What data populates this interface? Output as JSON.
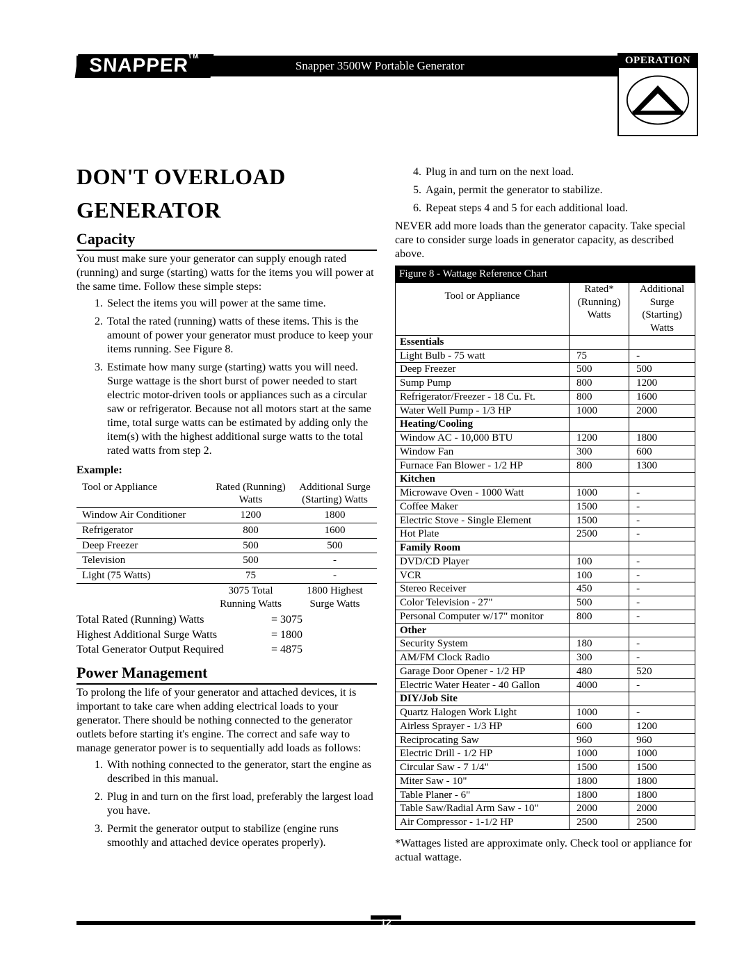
{
  "header": {
    "brand": "SNAPPER",
    "tm": "TM",
    "doc_title": "Snapper 3500W Portable Generator",
    "badge_label": "OPERATION"
  },
  "left": {
    "title_l1": "DON'T OVERLOAD",
    "title_l2": "GENERATOR",
    "capacity_h": "Capacity",
    "capacity_p": "You must make sure your generator can supply enough rated (running) and surge (starting) watts for the items you will power at the same time. Follow these simple steps:",
    "cap_steps": [
      "Select the items you will power at the same time.",
      "Total the rated (running) watts of these items. This is the amount of power your generator must produce to keep your items running. See Figure 8.",
      "Estimate how many surge (starting) watts you will need. Surge wattage is the short burst of power needed to start electric motor-driven tools or appliances such as a circular saw or refrigerator. Because not all motors start at the same time, total surge watts can be estimated by adding only the item(s) with the highest additional surge watts to the total rated watts from step 2."
    ],
    "example_label": "Example:",
    "ex_head": [
      "Tool or Appliance",
      "Rated (Running) Watts",
      "Additional Surge (Starting) Watts"
    ],
    "ex_rows": [
      [
        "Window Air Conditioner",
        "1200",
        "1800"
      ],
      [
        "Refrigerator",
        "800",
        "1600"
      ],
      [
        "Deep Freezer",
        "500",
        "500"
      ],
      [
        "Television",
        "500",
        "-"
      ],
      [
        "Light (75 Watts)",
        "75",
        "-"
      ]
    ],
    "ex_foot": [
      "",
      "3075 Total Running Watts",
      "1800 Highest Surge Watts"
    ],
    "totals": [
      [
        "Total Rated (Running) Watts",
        "= 3075"
      ],
      [
        "Highest Additional Surge Watts",
        "= 1800"
      ],
      [
        "Total Generator Output Required",
        "= 4875"
      ]
    ],
    "pm_h": "Power Management",
    "pm_p": "To prolong the life of your generator and attached devices, it is important to take care when adding electrical loads to your generator. There should be nothing connected to the generator outlets before starting it's engine. The correct and safe way to manage generator power is to sequentially add loads as follows:",
    "pm_steps": [
      "With nothing connected to the generator, start the engine as described in this manual.",
      "Plug in and turn on the first load, preferably the largest load you have.",
      "Permit the generator output to stabilize (engine runs smoothly and attached device operates properly)."
    ]
  },
  "right": {
    "steps_cont": [
      "Plug in and turn on the next load.",
      "Again, permit the generator to stabilize.",
      "Repeat steps 4 and 5 for each additional load."
    ],
    "never_p": "NEVER add more loads than the generator capacity. Take special care to consider surge loads in generator capacity, as described above.",
    "ref_caption": "Figure 8 - Wattage Reference Chart",
    "ref_head": [
      "Tool or Appliance",
      "Rated* (Running) Watts",
      "Additional Surge (Starting) Watts"
    ],
    "ref_rows": [
      {
        "cat": "Essentials"
      },
      {
        "r": [
          "Light Bulb - 75 watt",
          "75",
          "-"
        ]
      },
      {
        "r": [
          "Deep Freezer",
          "500",
          "500"
        ]
      },
      {
        "r": [
          "Sump Pump",
          "800",
          "1200"
        ]
      },
      {
        "r": [
          "Refrigerator/Freezer - 18 Cu. Ft.",
          "800",
          "1600"
        ]
      },
      {
        "r": [
          "Water Well Pump - 1/3 HP",
          "1000",
          "2000"
        ]
      },
      {
        "cat": "Heating/Cooling"
      },
      {
        "r": [
          "Window AC - 10,000 BTU",
          "1200",
          "1800"
        ]
      },
      {
        "r": [
          "Window Fan",
          "300",
          "600"
        ]
      },
      {
        "r": [
          "Furnace Fan Blower - 1/2 HP",
          "800",
          "1300"
        ]
      },
      {
        "cat": "Kitchen"
      },
      {
        "r": [
          "Microwave Oven - 1000 Watt",
          "1000",
          "-"
        ]
      },
      {
        "r": [
          "Coffee Maker",
          "1500",
          "-"
        ]
      },
      {
        "r": [
          "Electric Stove - Single Element",
          "1500",
          "-"
        ]
      },
      {
        "r": [
          "Hot Plate",
          "2500",
          "-"
        ]
      },
      {
        "cat": "Family Room"
      },
      {
        "r": [
          "DVD/CD Player",
          "100",
          "-"
        ]
      },
      {
        "r": [
          "VCR",
          "100",
          "-"
        ]
      },
      {
        "r": [
          "Stereo Receiver",
          "450",
          "-"
        ]
      },
      {
        "r": [
          "Color Television - 27\"",
          "500",
          "-"
        ]
      },
      {
        "r": [
          "Personal Computer w/17\" monitor",
          "800",
          "-"
        ]
      },
      {
        "cat": "Other"
      },
      {
        "r": [
          "Security System",
          "180",
          "-"
        ]
      },
      {
        "r": [
          "AM/FM Clock Radio",
          "300",
          "-"
        ]
      },
      {
        "r": [
          "Garage Door Opener - 1/2 HP",
          "480",
          "520"
        ]
      },
      {
        "r": [
          "Electric Water Heater - 40 Gallon",
          "4000",
          "-"
        ]
      },
      {
        "cat": "DIY/Job Site"
      },
      {
        "r": [
          "Quartz Halogen Work Light",
          "1000",
          "-"
        ]
      },
      {
        "r": [
          "Airless Sprayer - 1/3 HP",
          "600",
          "1200"
        ]
      },
      {
        "r": [
          "Reciprocating Saw",
          "960",
          "960"
        ]
      },
      {
        "r": [
          "Electric Drill - 1/2 HP",
          "1000",
          "1000"
        ]
      },
      {
        "r": [
          "Circular Saw - 7 1/4\"",
          "1500",
          "1500"
        ]
      },
      {
        "r": [
          "Miter Saw - 10\"",
          "1800",
          "1800"
        ]
      },
      {
        "r": [
          "Table Planer - 6\"",
          "1800",
          "1800"
        ]
      },
      {
        "r": [
          "Table Saw/Radial Arm Saw - 10\"",
          "2000",
          "2000"
        ]
      },
      {
        "r": [
          "Air Compressor - 1-1/2 HP",
          "2500",
          "2500"
        ]
      }
    ],
    "footnote": "*Wattages listed are approximate only. Check tool or appliance for actual wattage."
  },
  "page_number": "12",
  "colors": {
    "black": "#000000",
    "white": "#ffffff"
  }
}
